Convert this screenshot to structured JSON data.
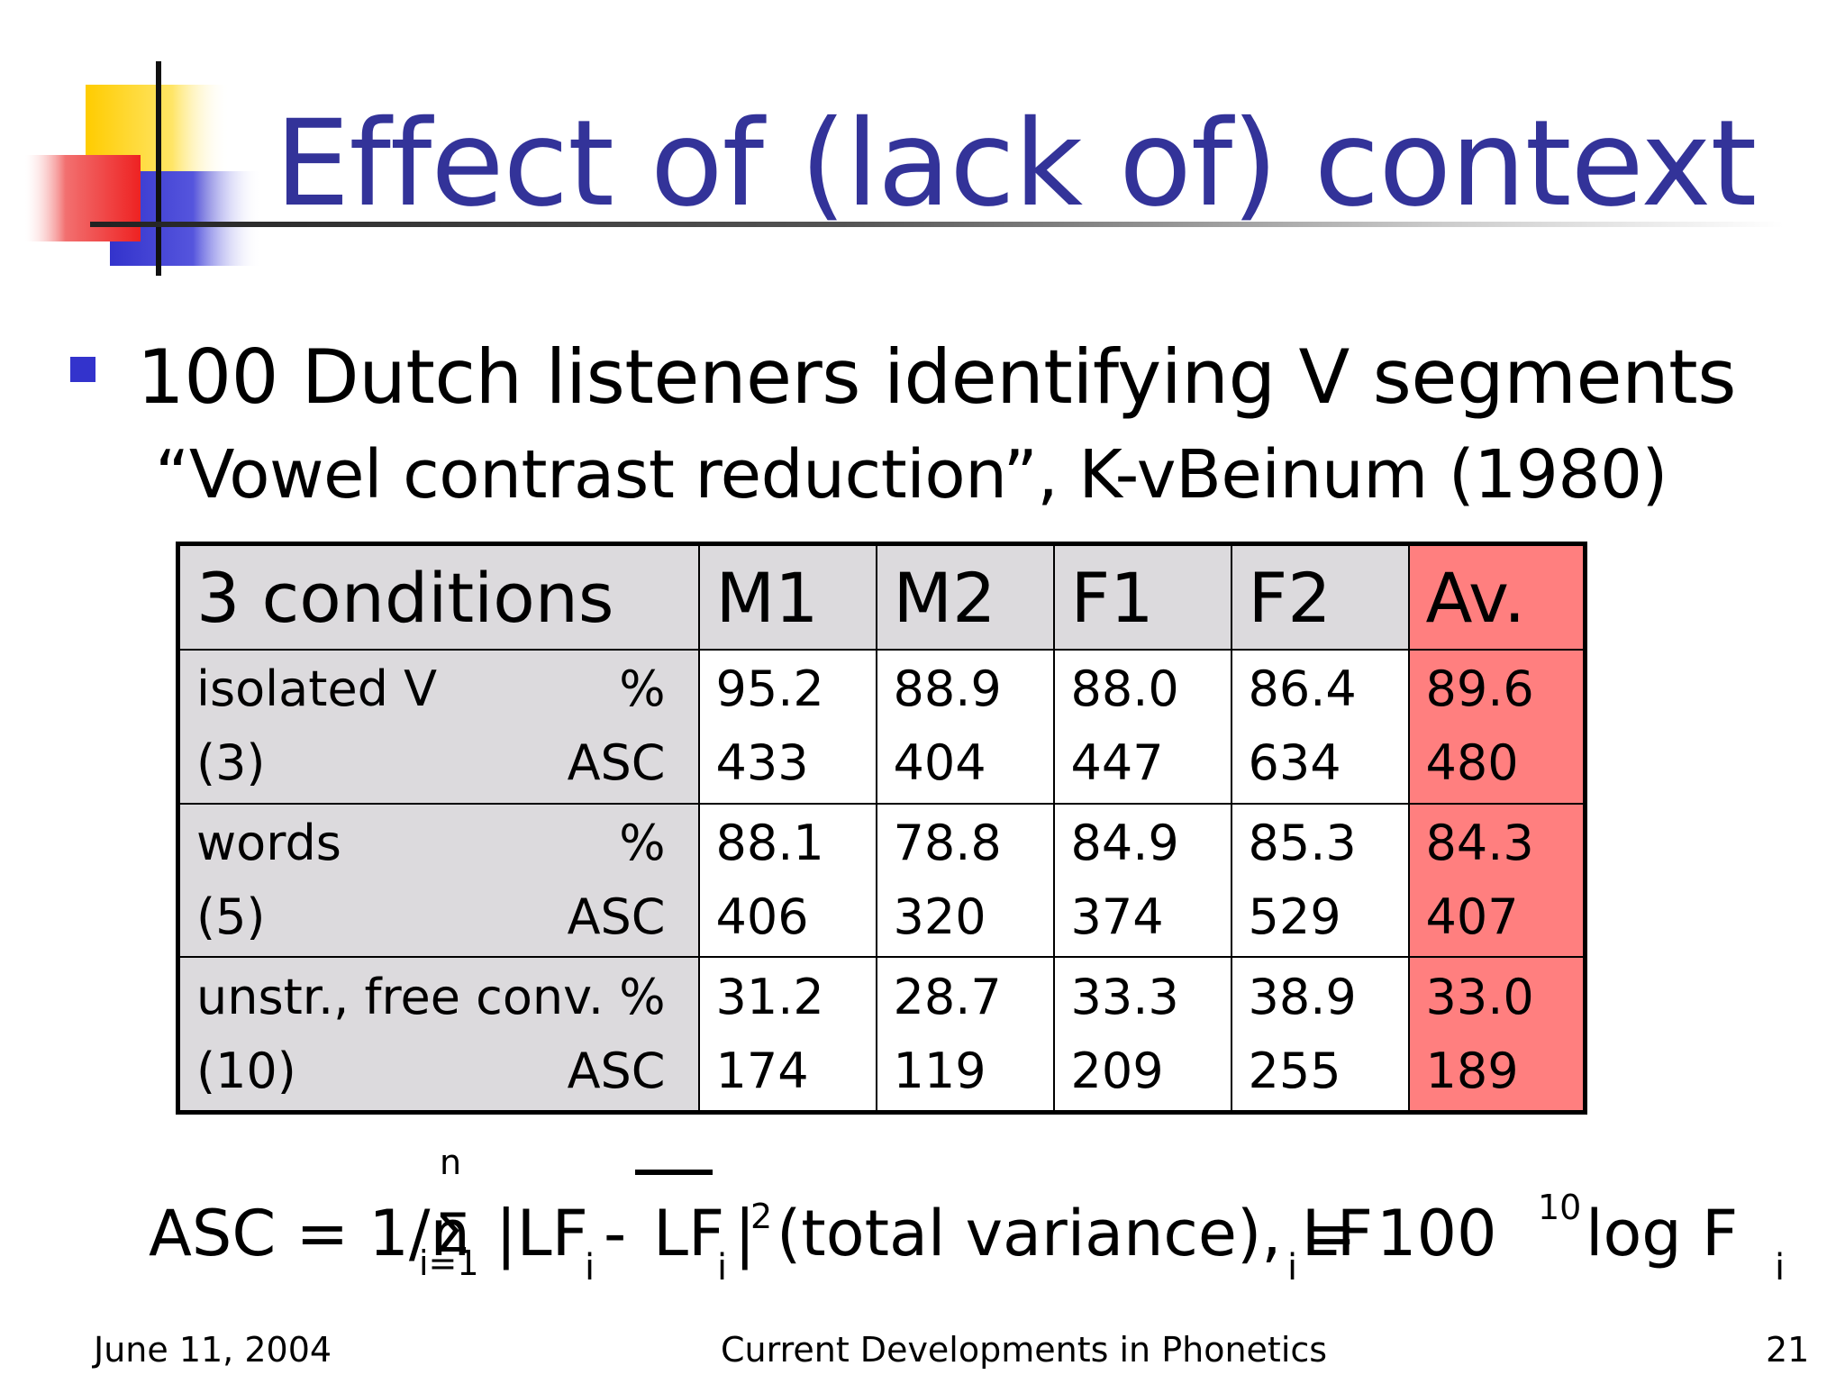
{
  "slide": {
    "title": "Effect of (lack of) context",
    "bullet": "100 Dutch listeners identifying V segments",
    "subline": "“Vowel contrast reduction”, K-vBeinum (1980)",
    "colors": {
      "title": "#333399",
      "bullet": "#3333cc",
      "gray_cell": "#dcdadd",
      "average_cell": "#ff7f7f",
      "logo_yellow": "#ffcc00",
      "logo_red": "#ee3333",
      "logo_blue": "#3333cc"
    }
  },
  "table": {
    "headers": [
      "3 conditions",
      "M1",
      "M2",
      "F1",
      "F2",
      "Av."
    ],
    "rows": [
      {
        "label_top": "isolated V",
        "unit_top": "%",
        "label_bottom": "(3)",
        "unit_bottom": "ASC",
        "pct": [
          "95.2",
          "88.9",
          "88.0",
          "86.4",
          "89.6"
        ],
        "asc": [
          "433",
          "404",
          "447",
          "634",
          "480"
        ]
      },
      {
        "label_top": "words",
        "unit_top": "%",
        "label_bottom": "(5)",
        "unit_bottom": "ASC",
        "pct": [
          "88.1",
          "78.8",
          "84.9",
          "85.3",
          "84.3"
        ],
        "asc": [
          "406",
          "320",
          "374",
          "529",
          "407"
        ]
      },
      {
        "label_top": "unstr., free conv.",
        "unit_top": "%",
        "label_bottom": "(10)",
        "unit_bottom": "ASC",
        "pct": [
          "31.2",
          "28.7",
          "33.3",
          "38.9",
          "33.0"
        ],
        "asc": [
          "174",
          "119",
          "209",
          "255",
          "189"
        ]
      }
    ]
  },
  "formula": {
    "lead": "ASC = 1/n",
    "sum_upper": "n",
    "sum_symbol": "Σ",
    "sum_lower": "i=1",
    "bar_open": "|LF",
    "sub_i": "i",
    "minus": " - ",
    "lf": "LF",
    "bar_close": "|",
    "power": "2",
    "middle": "(total variance), LF",
    "equals": " = 100 ",
    "log_base": "10",
    "tail": "log F"
  },
  "footer": {
    "date": "June 11, 2004",
    "center": "Current Developments in Phonetics",
    "page": "21"
  }
}
